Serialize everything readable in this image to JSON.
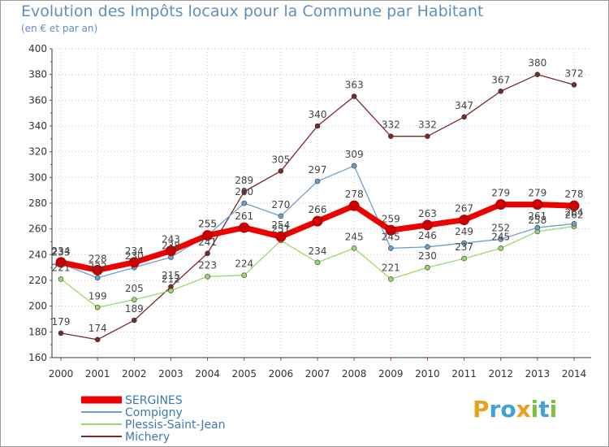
{
  "title": "Evolution des Impôts locaux pour la Commune par Habitant",
  "subtitle": "(en € et par an)",
  "brand": {
    "letters": [
      "P",
      "r",
      "o",
      "x",
      "i",
      "t",
      "i"
    ],
    "colors": [
      "#e8a020",
      "#3fa3d8",
      "#3fa3d8",
      "#e8a020",
      "#7fbf3f",
      "#3fa3d8",
      "#7fbf3f"
    ]
  },
  "chart_data": {
    "type": "line",
    "title": "Evolution des Impôts locaux pour la Commune par Habitant",
    "subtitle": "(en € et par an)",
    "xlabel": "",
    "ylabel": "",
    "ylim": [
      160,
      400
    ],
    "yticks": [
      160,
      180,
      200,
      220,
      240,
      260,
      280,
      300,
      320,
      340,
      360,
      380,
      400
    ],
    "x": [
      "2000",
      "2001",
      "2002",
      "2003",
      "2004",
      "2005",
      "2006",
      "2007",
      "2008",
      "2009",
      "2010",
      "2011",
      "2012",
      "2013",
      "2014"
    ],
    "legend_position": "bottom-left",
    "series": [
      {
        "name": "Michery",
        "color": "#7a2a2a",
        "width": 1.3,
        "marker": 3,
        "values": [
          179,
          174,
          189,
          215,
          241,
          289,
          305,
          340,
          363,
          332,
          332,
          347,
          367,
          380,
          372
        ],
        "labels": [
          "179",
          "174",
          "189",
          "215",
          "241",
          "289",
          "305",
          "340",
          "363",
          "332",
          "332",
          "347",
          "367",
          "380",
          "372"
        ]
      },
      {
        "name": "Plessis-Saint-Jean",
        "color": "#9bd86a",
        "width": 1.3,
        "marker": 3,
        "values": [
          221,
          199,
          205,
          212,
          223,
          224,
          251,
          234,
          245,
          221,
          230,
          237,
          245,
          258,
          262
        ],
        "labels": [
          "221",
          "199",
          "205",
          "212",
          "223",
          "224",
          "251",
          "234",
          "245",
          "221",
          "230",
          "237",
          "245",
          "258",
          "262"
        ]
      },
      {
        "name": "Compigny",
        "color": "#6aa0d0",
        "width": 1.3,
        "marker": 3,
        "values": [
          233,
          222,
          230,
          238,
          255,
          280,
          270,
          297,
          309,
          245,
          246,
          249,
          252,
          261,
          264
        ],
        "labels": [
          "233",
          "222",
          "230",
          "238",
          "255",
          "280",
          "270",
          "297",
          "309",
          "245",
          "246",
          "249",
          "252",
          "261",
          "264"
        ]
      },
      {
        "name": "SERGINES",
        "color": "#ee0000",
        "width": 7,
        "marker": 6,
        "values": [
          234,
          228,
          234,
          243,
          255,
          261,
          254,
          266,
          278,
          259,
          263,
          267,
          279,
          279,
          278
        ],
        "labels": [
          "234",
          "228",
          "234",
          "243",
          "255",
          "261",
          "254",
          "266",
          "278",
          "259",
          "263",
          "267",
          "279",
          "279",
          "278"
        ]
      }
    ],
    "legend": [
      "SERGINES",
      "Compigny",
      "Plessis-Saint-Jean",
      "Michery"
    ]
  }
}
